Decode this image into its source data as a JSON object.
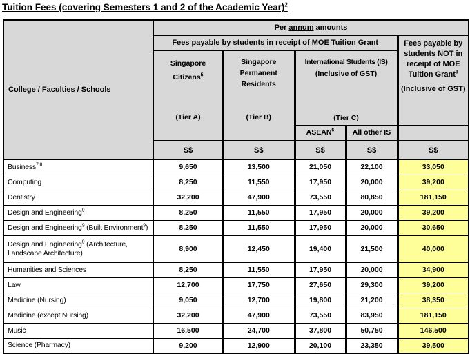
{
  "page": {
    "title": "Tuition Fees (covering Semesters 1 and 2 of the Academic Year)",
    "title_sup": "2"
  },
  "colors": {
    "header_bg": "#d8d8d8",
    "highlight_bg": "#ffff99",
    "border": "#000000",
    "page_bg": "#ffffff"
  },
  "header": {
    "corner": "College / Faculties / Schools",
    "per_annum": {
      "pre": "Per ",
      "u": "annum",
      "post": " amounts"
    },
    "grant_group": "Fees payable by students in receipt of MOE Tuition Grant",
    "no_grant": {
      "pre": "Fees payable by students ",
      "not_word": "NOT",
      "post": " in receipt of MOE Tuition Grant",
      "sup": "3",
      "note": "(Inclusive of GST)"
    },
    "tier_a": {
      "l1": "Singapore",
      "l2": "Citizens",
      "l2_sup": "5",
      "tier": "(Tier A)"
    },
    "tier_b": {
      "l1": "Singapore",
      "l2": "Permanent",
      "l3": "Residents",
      "tier": "(Tier B)"
    },
    "tier_c": {
      "l1": "International Students (IS)",
      "l2": "(Inclusive of GST)",
      "tier": "(Tier C)"
    },
    "asean": {
      "label": "ASEAN",
      "sup": "6"
    },
    "all_other_is": "All other IS",
    "currency": "S$"
  },
  "rows": [
    {
      "label": [
        {
          "t": "Business"
        },
        {
          "t": "7,8",
          "sup": true
        }
      ],
      "fees": [
        "9,650",
        "13,500",
        "21,050",
        "22,100"
      ],
      "no_grant": "33,050"
    },
    {
      "label": [
        {
          "t": "Computing"
        }
      ],
      "fees": [
        "8,250",
        "11,550",
        "17,950",
        "20,000"
      ],
      "no_grant": "39,200"
    },
    {
      "label": [
        {
          "t": "Dentistry"
        }
      ],
      "fees": [
        "32,200",
        "47,900",
        "73,550",
        "80,850"
      ],
      "no_grant": "181,150"
    },
    {
      "label": [
        {
          "t": "Design and Engineering"
        },
        {
          "t": "9",
          "sup": true
        }
      ],
      "fees": [
        "8,250",
        "11,550",
        "17,950",
        "20,000"
      ],
      "no_grant": "39,200"
    },
    {
      "label": [
        {
          "t": "Design and Engineering"
        },
        {
          "t": "9",
          "sup": true
        },
        {
          "t": " (Built Environment"
        },
        {
          "t": "9",
          "sup": true
        },
        {
          "t": ")"
        }
      ],
      "fees": [
        "8,250",
        "11,550",
        "17,950",
        "20,000"
      ],
      "no_grant": "30,650"
    },
    {
      "label": [
        {
          "t": "Design and Engineering"
        },
        {
          "t": "9",
          "sup": true
        },
        {
          "t": " (Architecture,"
        },
        {
          "br": true
        },
        {
          "t": "Landscape Architecture)"
        }
      ],
      "fees": [
        "8,900",
        "12,450",
        "19,400",
        "21,500"
      ],
      "no_grant": "40,000"
    },
    {
      "label": [
        {
          "t": "Humanities and Sciences"
        }
      ],
      "fees": [
        "8,250",
        "11,550",
        "17,950",
        "20,000"
      ],
      "no_grant": "34,900"
    },
    {
      "label": [
        {
          "t": "Law"
        }
      ],
      "fees": [
        "12,700",
        "17,750",
        "27,650",
        "29,300"
      ],
      "no_grant": "39,200"
    },
    {
      "label": [
        {
          "t": "Medicine (Nursing)"
        }
      ],
      "fees": [
        "9,050",
        "12,700",
        "19,800",
        "21,200"
      ],
      "no_grant": "38,350"
    },
    {
      "label": [
        {
          "t": "Medicine (except Nursing)"
        }
      ],
      "fees": [
        "32,200",
        "47,900",
        "73,550",
        "83,950"
      ],
      "no_grant": "181,150"
    },
    {
      "label": [
        {
          "t": "Music"
        }
      ],
      "fees": [
        "16,500",
        "24,700",
        "37,800",
        "50,750"
      ],
      "no_grant": "146,500"
    },
    {
      "label": [
        {
          "t": "Science (Pharmacy)"
        }
      ],
      "fees": [
        "9,200",
        "12,900",
        "20,100",
        "23,350"
      ],
      "no_grant": "39,500"
    }
  ]
}
